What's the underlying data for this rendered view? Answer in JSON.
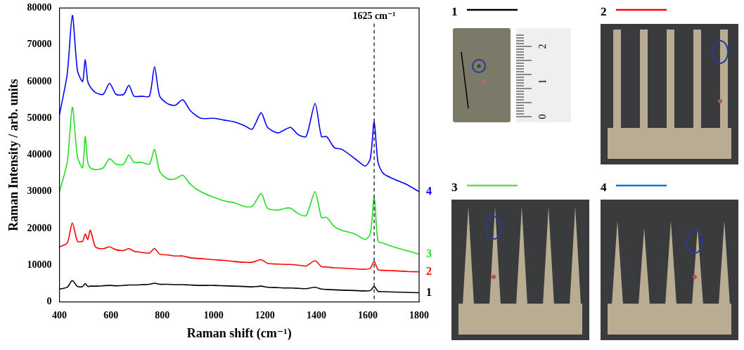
{
  "chart_data": {
    "type": "line",
    "x_label": "Raman shift (cm⁻¹)",
    "y_label": "Raman Intensity / arb. units",
    "xlim": [
      400,
      1800
    ],
    "xticks": [
      400,
      600,
      800,
      1000,
      1200,
      1400,
      1600,
      1800
    ],
    "ylim": [
      0,
      80000
    ],
    "yticks": [
      0,
      10000,
      20000,
      30000,
      40000,
      50000,
      60000,
      70000,
      80000
    ],
    "grid": false,
    "annotations": [
      {
        "x": 1625,
        "label": "1625 cm⁻¹"
      }
    ],
    "x": [
      400,
      430,
      450,
      470,
      490,
      500,
      510,
      520,
      540,
      570,
      595,
      620,
      650,
      670,
      690,
      720,
      750,
      770,
      790,
      820,
      850,
      880,
      910,
      950,
      1000,
      1040,
      1080,
      1120,
      1150,
      1185,
      1210,
      1250,
      1280,
      1300,
      1330,
      1360,
      1395,
      1420,
      1440,
      1470,
      1500,
      1550,
      1590,
      1610,
      1625,
      1640,
      1660,
      1700,
      1750,
      1800
    ],
    "series": [
      {
        "name": "1",
        "color": "#000000",
        "values": [
          3500,
          4000,
          5800,
          4200,
          4200,
          5000,
          4200,
          4300,
          4300,
          4400,
          4500,
          4400,
          4500,
          4600,
          4600,
          4700,
          4800,
          5100,
          4800,
          4800,
          4700,
          4700,
          4600,
          4500,
          4500,
          4400,
          4300,
          4200,
          4100,
          4300,
          4000,
          3900,
          3800,
          3800,
          3700,
          3600,
          4000,
          3500,
          3400,
          3300,
          3200,
          3100,
          3000,
          3100,
          4200,
          2900,
          2800,
          2700,
          2600,
          2500
        ]
      },
      {
        "name": "2",
        "color": "#ff0000",
        "values": [
          15000,
          16000,
          21500,
          16500,
          16500,
          18500,
          17000,
          19500,
          15000,
          14500,
          15000,
          14200,
          14000,
          14500,
          13800,
          13500,
          13300,
          14500,
          13000,
          12800,
          12500,
          12500,
          12000,
          11800,
          11500,
          11300,
          11000,
          10800,
          10800,
          11500,
          10500,
          10300,
          10200,
          10200,
          10000,
          9800,
          11200,
          9600,
          9500,
          9300,
          9200,
          9000,
          8900,
          9200,
          11000,
          8800,
          8600,
          8500,
          8300,
          8200
        ]
      },
      {
        "name": "3",
        "color": "#22dd22",
        "values": [
          30000,
          38000,
          53000,
          39500,
          36500,
          45000,
          38000,
          36500,
          36000,
          36500,
          39000,
          37500,
          37500,
          40000,
          38000,
          38000,
          37500,
          41500,
          35500,
          33500,
          33500,
          34500,
          32000,
          30000,
          28500,
          27500,
          27000,
          26000,
          26000,
          29500,
          25500,
          25000,
          25500,
          25500,
          24000,
          23500,
          30000,
          23000,
          23000,
          20500,
          19500,
          18500,
          17000,
          18500,
          28500,
          16500,
          16000,
          15000,
          14000,
          13000
        ]
      },
      {
        "name": "4",
        "color": "#0000ff",
        "values": [
          51000,
          62000,
          78000,
          63000,
          60000,
          66000,
          60000,
          58500,
          57000,
          56500,
          59500,
          56500,
          56500,
          59000,
          56000,
          56000,
          56000,
          64000,
          56000,
          54000,
          53500,
          55000,
          52000,
          50000,
          50000,
          49500,
          49000,
          48000,
          47000,
          51500,
          47500,
          46000,
          47000,
          47500,
          45500,
          45000,
          54000,
          45000,
          45000,
          42000,
          41500,
          39000,
          37000,
          39000,
          49000,
          38000,
          35000,
          33500,
          32000,
          30000
        ]
      }
    ]
  },
  "photos": [
    {
      "label": "1",
      "color": "#000000",
      "ruler_ticks": [
        0,
        1,
        2
      ]
    },
    {
      "label": "2",
      "color": "#ff0000"
    },
    {
      "label": "3",
      "color": "#7cd14c"
    },
    {
      "label": "4",
      "color": "#1f6fd4"
    }
  ]
}
